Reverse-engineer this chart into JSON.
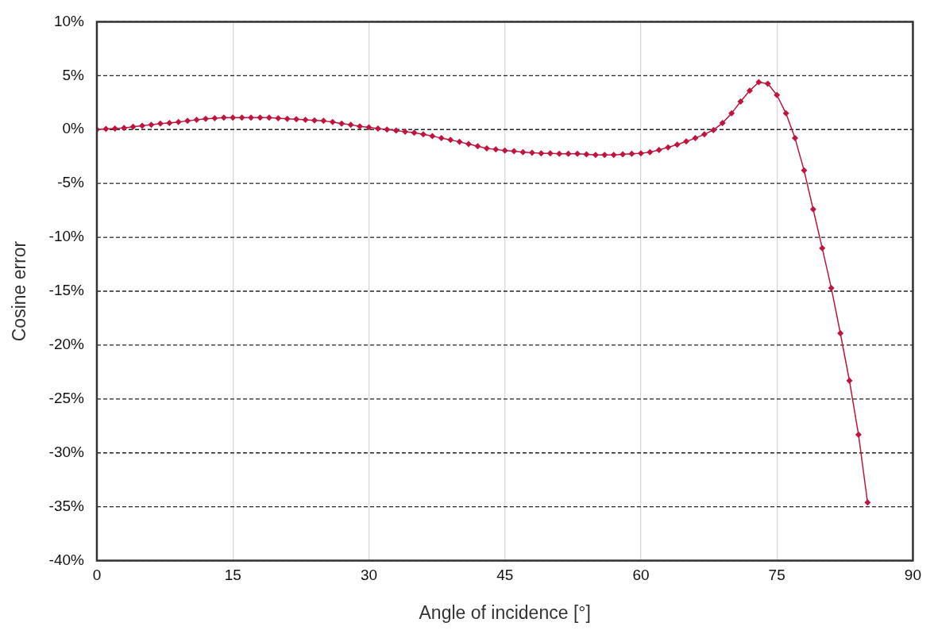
{
  "chart_data": {
    "type": "line",
    "xlabel": "Angle of incidence [°]",
    "ylabel": "Cosine error",
    "x": [
      0,
      1,
      2,
      3,
      4,
      5,
      6,
      7,
      8,
      9,
      10,
      11,
      12,
      13,
      14,
      15,
      16,
      17,
      18,
      19,
      20,
      21,
      22,
      23,
      24,
      25,
      26,
      27,
      28,
      29,
      30,
      31,
      32,
      33,
      34,
      35,
      36,
      37,
      38,
      39,
      40,
      41,
      42,
      43,
      44,
      45,
      46,
      47,
      48,
      49,
      50,
      51,
      52,
      53,
      54,
      55,
      56,
      57,
      58,
      59,
      60,
      61,
      62,
      63,
      64,
      65,
      66,
      67,
      68,
      69,
      70,
      71,
      72,
      73,
      74,
      75,
      76,
      77,
      78,
      79,
      80,
      81,
      82,
      83,
      84,
      85
    ],
    "series": [
      {
        "color": "#c0143c",
        "values": [
          0,
          0.05,
          0.1,
          0.15,
          0.25,
          0.35,
          0.45,
          0.55,
          0.6,
          0.7,
          0.8,
          0.9,
          1.0,
          1.05,
          1.1,
          1.1,
          1.1,
          1.1,
          1.1,
          1.1,
          1.05,
          1.0,
          0.95,
          0.9,
          0.85,
          0.8,
          0.7,
          0.55,
          0.45,
          0.3,
          0.2,
          0.1,
          0.0,
          -0.1,
          -0.2,
          -0.3,
          -0.45,
          -0.6,
          -0.8,
          -0.95,
          -1.15,
          -1.35,
          -1.55,
          -1.75,
          -1.85,
          -1.95,
          -2.0,
          -2.1,
          -2.15,
          -2.2,
          -2.2,
          -2.25,
          -2.25,
          -2.25,
          -2.3,
          -2.35,
          -2.35,
          -2.35,
          -2.3,
          -2.25,
          -2.2,
          -2.1,
          -1.9,
          -1.65,
          -1.4,
          -1.1,
          -0.8,
          -0.45,
          -0.05,
          0.6,
          1.5,
          2.6,
          3.6,
          4.4,
          4.25,
          3.2,
          1.5,
          -0.8,
          -3.8,
          -7.4,
          -11,
          -14.7,
          -18.9,
          -23.3,
          -28.3,
          -34.6
        ]
      }
    ],
    "xlim": [
      0,
      90
    ],
    "xticks": [
      0,
      15,
      30,
      45,
      60,
      75,
      90
    ],
    "ylim": [
      -40,
      10
    ],
    "yticks": [
      {
        "value": -40,
        "label": "-40%"
      },
      {
        "value": -35,
        "label": "-35%"
      },
      {
        "value": -30,
        "label": "-30%"
      },
      {
        "value": -25,
        "label": "-25%"
      },
      {
        "value": -20,
        "label": "-20%"
      },
      {
        "value": -15,
        "label": "-15%"
      },
      {
        "value": -10,
        "label": "-10%"
      },
      {
        "value": -5,
        "label": "-5%"
      },
      {
        "value": 0,
        "label": "0%"
      },
      {
        "value": 5,
        "label": "5%"
      },
      {
        "value": 10,
        "label": "10%"
      }
    ],
    "grid": true,
    "legend": false,
    "marker": "diamond",
    "line_style": "solid"
  }
}
